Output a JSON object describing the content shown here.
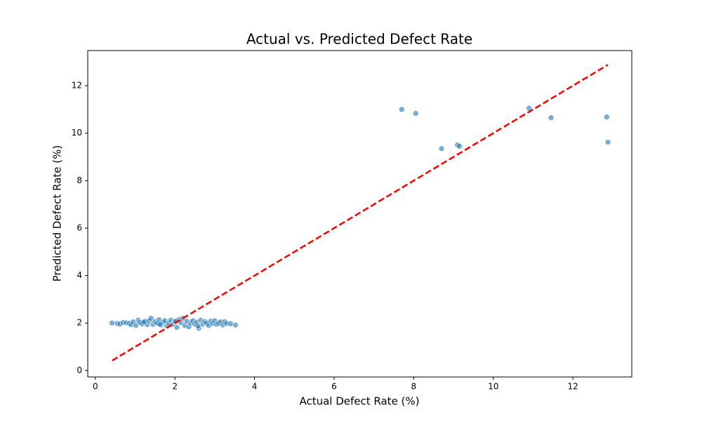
{
  "chart_data": {
    "type": "scatter",
    "title": "Actual vs. Predicted Defect Rate",
    "x_label": "Actual Defect Rate (%)",
    "y_label": "Predicted Defect Rate (%)",
    "x": [
      0.42,
      0.55,
      0.62,
      0.7,
      0.78,
      0.85,
      0.9,
      0.95,
      1.02,
      1.08,
      1.12,
      1.18,
      1.25,
      1.3,
      1.35,
      1.4,
      1.45,
      1.5,
      1.55,
      1.6,
      1.65,
      1.7,
      1.75,
      1.8,
      1.85,
      1.9,
      1.95,
      2.0,
      2.05,
      2.1,
      2.15,
      2.2,
      2.25,
      2.3,
      2.35,
      2.4,
      2.45,
      2.5,
      2.55,
      2.6,
      2.65,
      2.7,
      2.75,
      2.8,
      2.85,
      2.9,
      2.95,
      3.0,
      3.05,
      3.1,
      3.15,
      3.2,
      3.25,
      3.3,
      3.4,
      3.52,
      1.22,
      1.62,
      2.02,
      2.58,
      7.7,
      8.05,
      8.7,
      9.1,
      9.15,
      10.9,
      11.45,
      12.85,
      12.88
    ],
    "values": [
      2.0,
      1.98,
      1.96,
      2.03,
      2.01,
      1.99,
      1.93,
      2.05,
      1.9,
      2.12,
      2.02,
      1.97,
      2.08,
      1.94,
      2.1,
      2.2,
      1.95,
      2.06,
      1.99,
      2.14,
      1.92,
      2.04,
      2.1,
      1.88,
      2.0,
      2.12,
      1.96,
      2.05,
      1.82,
      2.15,
      2.02,
      2.2,
      1.9,
      2.08,
      1.85,
      2.0,
      2.1,
      1.96,
      2.04,
      1.78,
      2.12,
      1.95,
      2.06,
      2.0,
      1.9,
      2.08,
      1.98,
      2.1,
      1.95,
      2.0,
      2.05,
      1.92,
      2.06,
      1.98,
      1.97,
      1.92,
      2.04,
      1.95,
      2.08,
      1.88,
      11.0,
      10.83,
      9.35,
      9.5,
      9.45,
      11.05,
      10.65,
      10.68,
      9.62
    ],
    "color": "#1f77b4",
    "reference_line": {
      "x": [
        0.42,
        12.88
      ],
      "values": [
        0.42,
        12.88
      ],
      "color": "#ff0000",
      "style": "dashed"
    },
    "xlim": [
      -0.19,
      13.48
    ],
    "ylim": [
      -0.27,
      13.48
    ],
    "xticks": [
      0,
      2,
      4,
      6,
      8,
      10,
      12
    ],
    "yticks": [
      0,
      2,
      4,
      6,
      8,
      10,
      12
    ],
    "grid": false
  }
}
